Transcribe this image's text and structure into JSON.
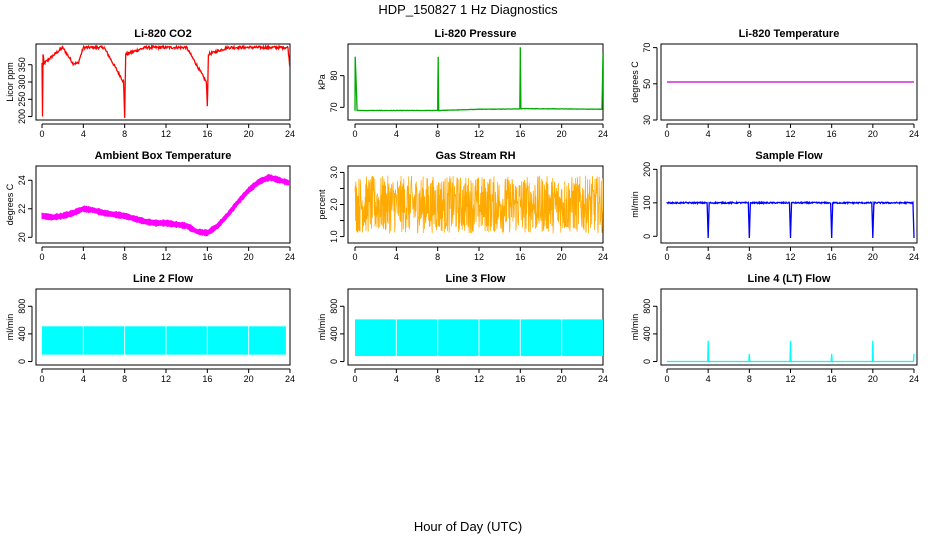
{
  "title": "HDP_150827  1 Hz Diagnostics",
  "xlabel": "Hour of Day (UTC)",
  "chart_data": [
    {
      "type": "line",
      "title": "Li-820 CO2",
      "ylabel": "Licor ppm",
      "xlim": [
        0,
        24
      ],
      "ylim": [
        190,
        410
      ],
      "xticks": [
        0,
        4,
        8,
        12,
        16,
        20,
        24
      ],
      "yticks": [
        200,
        250,
        300,
        350
      ],
      "color": "#ff0000",
      "style": "line",
      "baseline": 354,
      "noise": 4,
      "series": [
        {
          "x": [
            0,
            0.05,
            0.1,
            0.2,
            2,
            3,
            3.5,
            4,
            6,
            7.9,
            8,
            8.1,
            10,
            12,
            14,
            15.9,
            16,
            16.1,
            18,
            20,
            22,
            23.8,
            24
          ],
          "values": [
            354,
            200,
            380,
            354,
            400,
            354,
            354,
            400,
            400,
            300,
            196,
            380,
            400,
            400,
            400,
            300,
            230,
            380,
            400,
            400,
            400,
            400,
            340
          ]
        }
      ]
    },
    {
      "type": "line",
      "title": "Li-820 Pressure",
      "ylabel": "kPa",
      "xlim": [
        0,
        24
      ],
      "ylim": [
        66,
        90
      ],
      "xticks": [
        0,
        4,
        8,
        12,
        16,
        20,
        24
      ],
      "yticks": [
        70,
        80
      ],
      "color": "#00aa00",
      "style": "line",
      "baseline": 69,
      "noise": 0.05,
      "series": [
        {
          "x": [
            0,
            0.02,
            0.1,
            0.2,
            8,
            8.05,
            8.1,
            12,
            15.95,
            16,
            16.05,
            20,
            23.9,
            24
          ],
          "values": [
            69,
            86,
            79,
            69,
            69,
            86,
            69,
            69.4,
            69.5,
            89,
            69.6,
            69.5,
            69.4,
            87
          ]
        }
      ]
    },
    {
      "type": "line",
      "title": "Li-820 Temperature",
      "ylabel": "degrees C",
      "xlim": [
        0,
        24
      ],
      "ylim": [
        30,
        72
      ],
      "xticks": [
        0,
        4,
        8,
        12,
        16,
        20,
        24
      ],
      "yticks": [
        30,
        50,
        70
      ],
      "color": "#cc00cc",
      "style": "line",
      "baseline": 51,
      "noise": 0,
      "series": [
        {
          "x": [
            0,
            24
          ],
          "values": [
            51,
            51
          ]
        }
      ]
    },
    {
      "type": "line",
      "title": "Ambient Box Temperature",
      "ylabel": "degrees C",
      "xlim": [
        0,
        24
      ],
      "ylim": [
        19.6,
        25.0
      ],
      "xticks": [
        0,
        4,
        8,
        12,
        16,
        20,
        24
      ],
      "yticks": [
        20,
        22,
        24
      ],
      "color": "#ff00ff",
      "style": "band",
      "band": 0.45,
      "series": [
        {
          "x": [
            0,
            1,
            2,
            3,
            4,
            5,
            6,
            7,
            8,
            9,
            10,
            11,
            12,
            13,
            14,
            15,
            16,
            17,
            18,
            19,
            20,
            21,
            22,
            23,
            24
          ],
          "values": [
            21.5,
            21.4,
            21.5,
            21.7,
            22.0,
            21.9,
            21.7,
            21.6,
            21.5,
            21.3,
            21.1,
            21.0,
            21.0,
            20.9,
            20.8,
            20.4,
            20.3,
            20.8,
            21.6,
            22.5,
            23.3,
            23.9,
            24.2,
            24.0,
            23.8
          ]
        }
      ]
    },
    {
      "type": "scatter",
      "title": "Gas Stream RH",
      "ylabel": "percent",
      "xlim": [
        0,
        24
      ],
      "ylim": [
        0.8,
        3.2
      ],
      "xticks": [
        0,
        4,
        8,
        12,
        16,
        20,
        24
      ],
      "yticks": [
        1.0,
        1.5,
        2.0,
        2.5,
        3.0
      ],
      "ytick_labels": [
        "1.0",
        "",
        "2.0",
        "",
        "3.0"
      ],
      "color": "#ffaa00",
      "style": "noisy",
      "series": [
        {
          "x": [
            0,
            24
          ],
          "ymin": [
            1.1,
            1.1
          ],
          "ymax": [
            2.9,
            2.9
          ]
        }
      ]
    },
    {
      "type": "line",
      "title": "Sample Flow",
      "ylabel": "ml/min",
      "xlim": [
        0,
        24
      ],
      "ylim": [
        -20,
        210
      ],
      "xticks": [
        0,
        4,
        8,
        12,
        16,
        20,
        24
      ],
      "yticks": [
        0,
        100,
        200
      ],
      "color": "#0000ff",
      "style": "line",
      "baseline": 100,
      "noise": 2,
      "series": [
        {
          "x": [
            0,
            3.9,
            4,
            4.1,
            7.9,
            8,
            8.1,
            11.9,
            12,
            12.1,
            15.9,
            16,
            16.1,
            19.9,
            20,
            20.1,
            23.9,
            24
          ],
          "values": [
            100,
            100,
            -5,
            100,
            100,
            -5,
            100,
            100,
            -5,
            100,
            100,
            -5,
            100,
            100,
            -5,
            100,
            100,
            -5
          ]
        }
      ]
    },
    {
      "type": "area",
      "title": "Line 2 Flow",
      "ylabel": "ml/min",
      "xlim": [
        0,
        24
      ],
      "ylim": [
        -50,
        1050
      ],
      "xticks": [
        0,
        4,
        8,
        12,
        16,
        20,
        24
      ],
      "yticks": [
        0,
        400,
        800
      ],
      "color": "#00ffff",
      "style": "block",
      "series": [
        {
          "x": [
            0,
            23.6
          ],
          "ymin": [
            100,
            100
          ],
          "ymax": [
            510,
            510
          ]
        }
      ]
    },
    {
      "type": "area",
      "title": "Line 3 Flow",
      "ylabel": "ml/min",
      "xlim": [
        0,
        24
      ],
      "ylim": [
        -50,
        1050
      ],
      "xticks": [
        0,
        4,
        8,
        12,
        16,
        20,
        24
      ],
      "yticks": [
        0,
        400,
        800
      ],
      "color": "#00ffff",
      "style": "block",
      "series": [
        {
          "x": [
            0,
            24
          ],
          "ymin": [
            80,
            80
          ],
          "ymax": [
            610,
            610
          ]
        }
      ]
    },
    {
      "type": "line",
      "title": "Line 4 (LT) Flow",
      "ylabel": "ml/min",
      "xlim": [
        0,
        24
      ],
      "ylim": [
        -50,
        1050
      ],
      "xticks": [
        0,
        4,
        8,
        12,
        16,
        20,
        24
      ],
      "yticks": [
        0,
        400,
        800
      ],
      "color": "#00ffff",
      "style": "line",
      "baseline": 0,
      "noise": 0,
      "series": [
        {
          "x": [
            0,
            3.95,
            4,
            4.05,
            7.95,
            8,
            8.05,
            11.95,
            12,
            12.05,
            15.95,
            16,
            16.05,
            19.95,
            20,
            20.05,
            23.95,
            24
          ],
          "values": [
            0,
            0,
            300,
            0,
            0,
            110,
            0,
            0,
            300,
            0,
            0,
            110,
            0,
            0,
            300,
            0,
            0,
            110
          ]
        }
      ]
    }
  ]
}
